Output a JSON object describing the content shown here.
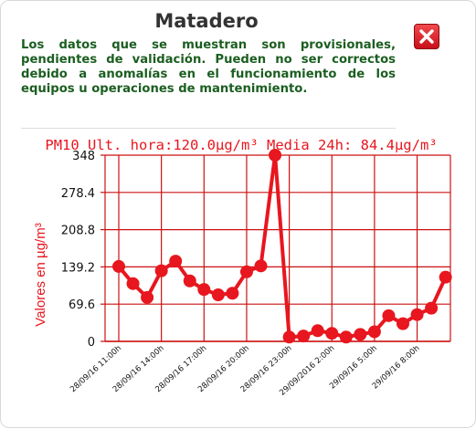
{
  "popup": {
    "title": "Matadero",
    "notice": "Los datos que se muestran son provisionales, pendientes de validación. Pueden no ser correctos debido a anomalías en el funcionamiento de los equipos u operaciones de mantenimiento.",
    "close_icon": "close-x-icon"
  },
  "colors": {
    "title": "#333333",
    "notice": "#1b5e20",
    "chart": "#e8161e",
    "grid": "#cc1111",
    "close_button": "#d71920"
  },
  "chart_data": {
    "type": "line",
    "title": "PM10 Ult. hora:120.0µg/m³ Media 24h: 84.4µg/m³",
    "ylabel": "Valores en µg/m³",
    "xlabel": "",
    "ylim": [
      0,
      348
    ],
    "yticks": [
      "348",
      "278.4",
      "208.8",
      "139.2",
      "69.6",
      "0"
    ],
    "xtick_labels": [
      "28/09/16 11:00h",
      "28/09/16 14:00h",
      "28/09/16 17:00h",
      "28/09/16 20:00h",
      "28/09/16 23:00h",
      "29/09/2016 2:00h",
      "29/09/16 5:00h",
      "29/09/16 8:00h"
    ],
    "grid": true,
    "series": [
      {
        "values": [
          140,
          108,
          82,
          132,
          150,
          113,
          97,
          87,
          90,
          130,
          141,
          348,
          8,
          10,
          20,
          15,
          8,
          13,
          18,
          48,
          33,
          50,
          62,
          120
        ]
      }
    ]
  }
}
